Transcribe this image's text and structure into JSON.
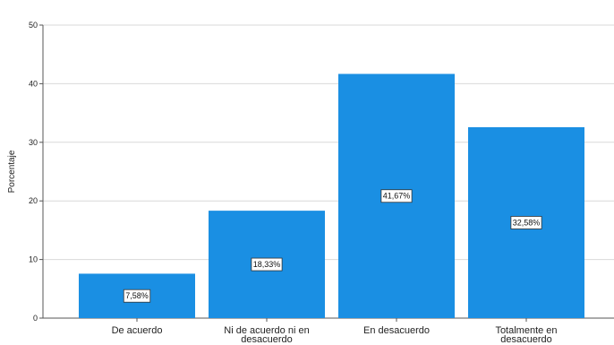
{
  "chart_data": {
    "type": "bar",
    "title": "",
    "xlabel": "",
    "ylabel": "Porcentaje",
    "ylim": [
      0,
      50
    ],
    "yticks": [
      0,
      10,
      20,
      30,
      40,
      50
    ],
    "grid": true,
    "categories": [
      [
        "De acuerdo"
      ],
      [
        "Ni de acuerdo ni en",
        "desacuerdo"
      ],
      [
        "En desacuerdo"
      ],
      [
        "Totalmente en",
        "desacuerdo"
      ]
    ],
    "values": [
      7.58,
      18.33,
      41.67,
      32.58
    ],
    "data_labels": [
      "7,58%",
      "18,33%",
      "41,67%",
      "32,58%"
    ],
    "colors": {
      "bar": "#1a8fe3",
      "grid": "#d9d9d9",
      "axis": "#555555"
    }
  }
}
